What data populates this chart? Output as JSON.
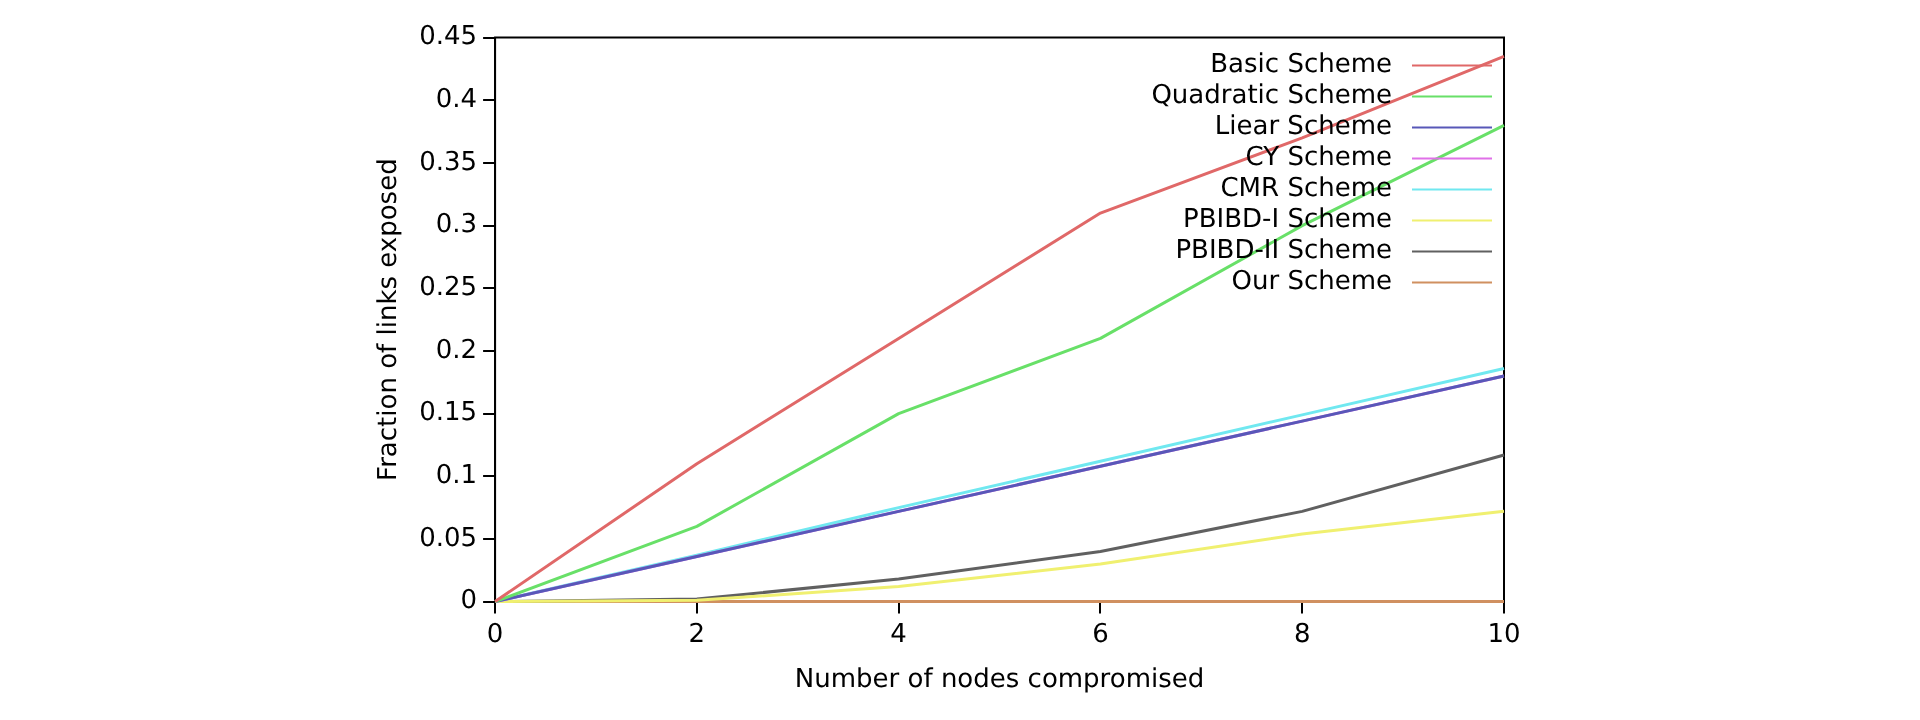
{
  "chart_data": {
    "type": "line",
    "xlabel": "Number of nodes compromised",
    "ylabel": "Fraction of links exposed",
    "x": [
      0,
      2,
      4,
      6,
      8,
      10
    ],
    "series": [
      {
        "name": "Basic Scheme",
        "color": "#e06868",
        "values": [
          0,
          0.11,
          0.21,
          0.31,
          0.37,
          0.435
        ]
      },
      {
        "name": "Quadratic Scheme",
        "color": "#68e068",
        "values": [
          0,
          0.06,
          0.15,
          0.21,
          0.3,
          0.38
        ]
      },
      {
        "name": "Liear Scheme",
        "color": "#5858b8",
        "values": [
          0,
          0.036,
          0.072,
          0.108,
          0.144,
          0.18
        ]
      },
      {
        "name": "CY Scheme",
        "color": "#e070e8",
        "values": [
          0,
          0.036,
          0.072,
          0.108,
          0.144,
          0.18
        ]
      },
      {
        "name": "CMR Scheme",
        "color": "#70e8f0",
        "values": [
          0,
          0.037,
          0.075,
          0.112,
          0.149,
          0.186
        ]
      },
      {
        "name": "PBIBD-I Scheme",
        "color": "#f0f070",
        "values": [
          0,
          0.001,
          0.012,
          0.03,
          0.054,
          0.072
        ]
      },
      {
        "name": "PBIBD-II Scheme",
        "color": "#606060",
        "values": [
          0,
          0.002,
          0.018,
          0.04,
          0.072,
          0.117
        ]
      },
      {
        "name": "Our Scheme",
        "color": "#d09060",
        "values": [
          0,
          0,
          0,
          0,
          0,
          0
        ]
      }
    ],
    "xlim": [
      0,
      10
    ],
    "xticks": [
      0,
      2,
      4,
      6,
      8,
      10
    ],
    "ylim": [
      0,
      0.45
    ],
    "yticks": [
      0,
      0.05,
      0.1,
      0.15,
      0.2,
      0.25,
      0.3,
      0.35,
      0.4,
      0.45
    ],
    "grid": false,
    "legend": "top right",
    "marker": "none",
    "line_style": "solid"
  }
}
